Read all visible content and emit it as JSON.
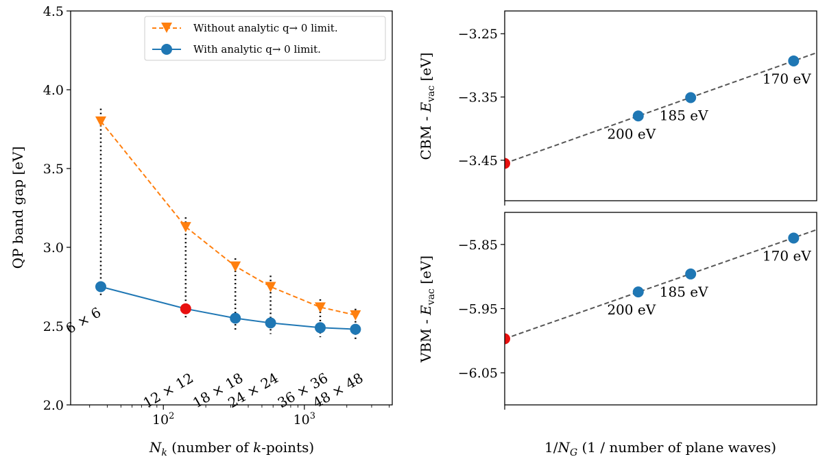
{
  "chart_data": [
    {
      "type": "line",
      "xlabel_parts": [
        "N",
        "k",
        " (number of ",
        "k",
        "-points)"
      ],
      "ylabel": "QP band gap [eV]",
      "xscale": "log",
      "xlim": [
        22,
        4200
      ],
      "ylim": [
        2.0,
        4.5
      ],
      "xticks": [
        {
          "value": 100,
          "base": "10",
          "exp": "2"
        },
        {
          "value": 1000,
          "base": "10",
          "exp": "3"
        }
      ],
      "yticks": [
        "2.0",
        "2.5",
        "3.0",
        "3.5",
        "4.0",
        "4.5"
      ],
      "legend": {
        "placement": "top-right",
        "entries": [
          {
            "series": 0,
            "label": "Without analytic q→ 0 limit."
          },
          {
            "series": 1,
            "label": "With analytic q→ 0 limit."
          }
        ]
      },
      "series": [
        {
          "name": "Without analytic q→ 0 limit.",
          "color": "#ff7f0e",
          "style": "dashed",
          "marker": "triangle-down",
          "x": [
            36,
            144,
            324,
            576,
            1296,
            2304
          ],
          "y": [
            3.8,
            3.13,
            2.88,
            2.75,
            2.62,
            2.57
          ]
        },
        {
          "name": "With analytic q→ 0 limit.",
          "color": "#1f77b4",
          "style": "solid",
          "marker": "circle",
          "x": [
            36,
            144,
            324,
            576,
            1296,
            2304
          ],
          "y": [
            2.75,
            2.61,
            2.55,
            2.52,
            2.49,
            2.48
          ],
          "highlight_index": 1,
          "highlight_color": "#e8100f"
        }
      ],
      "error_bars": [
        {
          "x": 36,
          "y_low": 2.68,
          "y_high": 3.88
        },
        {
          "x": 144,
          "y_low": 2.54,
          "y_high": 3.19
        },
        {
          "x": 324,
          "y_low": 2.47,
          "y_high": 2.93
        },
        {
          "x": 576,
          "y_low": 2.45,
          "y_high": 2.82
        },
        {
          "x": 1296,
          "y_low": 2.43,
          "y_high": 2.67
        },
        {
          "x": 2304,
          "y_low": 2.41,
          "y_high": 2.61
        }
      ],
      "annotations": [
        {
          "x": 36,
          "a": "6",
          "b": "6"
        },
        {
          "x": 144,
          "a": "12",
          "b": "12"
        },
        {
          "x": 324,
          "a": "18",
          "b": "18"
        },
        {
          "x": 576,
          "a": "24",
          "b": "24"
        },
        {
          "x": 1296,
          "a": "36",
          "b": "36"
        },
        {
          "x": 2304,
          "a": "48",
          "b": "48"
        }
      ],
      "times_symbol": "×"
    },
    {
      "type": "scatter",
      "ylabel_parts": [
        "CBM - ",
        "E",
        "vac",
        " [eV]"
      ],
      "xlim": [
        0,
        1
      ],
      "ylim": [
        -3.514,
        -3.214
      ],
      "yticks": [
        -3.25,
        -3.35,
        -3.45
      ],
      "ytick_labels": [
        "−3.25",
        "−3.35",
        "−3.45"
      ],
      "fit_line": {
        "intercept": -3.455,
        "slope": 0.175,
        "color": "#555555",
        "style": "dashed"
      },
      "points": [
        {
          "x": 0.428,
          "y": -3.38,
          "label": "200 eV",
          "label_pos": "below"
        },
        {
          "x": 0.596,
          "y": -3.351,
          "label": "185 eV",
          "label_pos": "below"
        },
        {
          "x": 0.926,
          "y": -3.293,
          "label": "170 eV",
          "label_pos": "below"
        }
      ],
      "extrapolated": {
        "x": 0.0,
        "y": -3.455,
        "color": "#e8100f"
      },
      "point_color": "#1f77b4"
    },
    {
      "type": "scatter",
      "ylabel_parts": [
        "VBM - ",
        "E",
        "vac",
        " [eV]"
      ],
      "xlim": [
        0,
        1
      ],
      "ylim": [
        -6.1,
        -5.8
      ],
      "yticks": [
        -5.85,
        -5.95,
        -6.05
      ],
      "ytick_labels": [
        "−5.85",
        "−5.95",
        "−6.05"
      ],
      "fit_line": {
        "intercept": -5.997,
        "slope": 0.17,
        "color": "#555555",
        "style": "dashed"
      },
      "points": [
        {
          "x": 0.428,
          "y": -5.924,
          "label": "200 eV",
          "label_pos": "below"
        },
        {
          "x": 0.596,
          "y": -5.896,
          "label": "185 eV",
          "label_pos": "below"
        },
        {
          "x": 0.926,
          "y": -5.84,
          "label": "170 eV",
          "label_pos": "below"
        }
      ],
      "extrapolated": {
        "x": 0.0,
        "y": -5.997,
        "color": "#e8100f"
      },
      "point_color": "#1f77b4",
      "xlabel_parts": [
        "1/",
        "N",
        "G",
        " (1 / number of plane waves)"
      ]
    }
  ]
}
